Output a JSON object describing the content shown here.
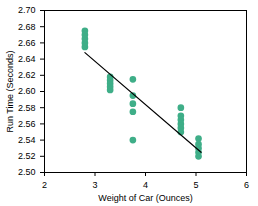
{
  "chart_data": {
    "type": "scatter",
    "x_label": "Weight of Car (Ounces)",
    "y_label": "Run Time (Seconds)",
    "xlim": [
      2,
      6
    ],
    "xticks": [
      2,
      3,
      4,
      5,
      6
    ],
    "ylim": [
      2.5,
      2.7
    ],
    "yticks": [
      {
        "value": 2.5,
        "label": "2.50"
      },
      2.52,
      2.54,
      2.56,
      2.58,
      {
        "value": 2.6,
        "label": "2.60"
      },
      2.62,
      2.64,
      2.66,
      2.68,
      {
        "value": 2.7,
        "label": "2.70"
      }
    ],
    "grid": false,
    "series": [
      {
        "type": "scatter",
        "color": "#3fae88",
        "marker": "circle",
        "x": [
          2.8,
          2.8,
          2.8,
          2.8,
          2.8,
          3.3,
          3.3,
          3.3,
          3.3,
          3.3,
          3.75,
          3.75,
          3.75,
          3.75,
          3.75,
          4.7,
          4.7,
          4.7,
          4.7,
          4.7,
          4.7,
          5.05,
          5.05,
          5.05,
          5.05,
          5.05
        ],
        "values": [
          2.675,
          2.67,
          2.665,
          2.66,
          2.655,
          2.618,
          2.614,
          2.61,
          2.606,
          2.602,
          2.615,
          2.595,
          2.585,
          2.575,
          2.54,
          2.58,
          2.57,
          2.565,
          2.56,
          2.555,
          2.55,
          2.542,
          2.535,
          2.53,
          2.525,
          2.52
        ]
      },
      {
        "type": "line",
        "color": "#000000",
        "line_style": "solid",
        "x": [
          2.8,
          5.1
        ],
        "values": [
          2.648,
          2.525
        ]
      }
    ]
  }
}
